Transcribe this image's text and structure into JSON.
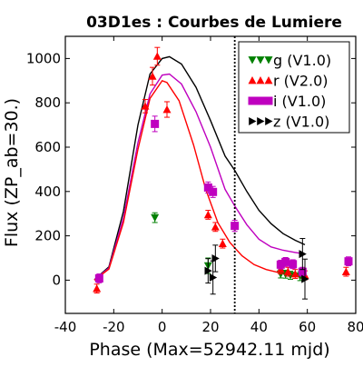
{
  "chart_data": {
    "type": "scatter",
    "title": "03D1es : Courbes de Lumiere",
    "xlabel": "Phase (Max=52942.11 mjd)",
    "ylabel": "Flux (ZP_ab=30.)",
    "xlim": [
      -40,
      80
    ],
    "ylim": [
      -150,
      1100
    ],
    "x_ticks": [
      -40,
      -20,
      0,
      20,
      40,
      60,
      80
    ],
    "x_tick_labels": [
      "-40",
      "-20",
      "0",
      "20",
      "40",
      "60",
      "80"
    ],
    "y_ticks": [
      0,
      200,
      400,
      600,
      800,
      1000
    ],
    "y_tick_labels": [
      "0",
      "200",
      "400",
      "600",
      "800",
      "1000"
    ],
    "grid": false,
    "legend_position": "top-right",
    "vline_x": 30,
    "series": [
      {
        "name": "g (V1.0)",
        "color": "#008000",
        "marker": "triangle-down",
        "points": [
          {
            "x": -3,
            "y": 282,
            "err": 22
          },
          {
            "x": 19,
            "y": 65,
            "err": 35
          },
          {
            "x": 49,
            "y": 28,
            "err": 18
          },
          {
            "x": 51,
            "y": 27,
            "err": 18
          },
          {
            "x": 53,
            "y": 22,
            "err": 18
          },
          {
            "x": 57,
            "y": 18,
            "err": 20
          }
        ]
      },
      {
        "name": "r (V2.0)",
        "color": "#ff0000",
        "marker": "triangle-up",
        "points": [
          {
            "x": -27,
            "y": -38,
            "err": 20
          },
          {
            "x": -7,
            "y": 785,
            "err": 30
          },
          {
            "x": -4,
            "y": 920,
            "err": 40
          },
          {
            "x": -2,
            "y": 1010,
            "err": 40
          },
          {
            "x": 2,
            "y": 770,
            "err": 35
          },
          {
            "x": 19,
            "y": 295,
            "err": 20
          },
          {
            "x": 22,
            "y": 240,
            "err": 20
          },
          {
            "x": 25,
            "y": 165,
            "err": 20
          },
          {
            "x": 49,
            "y": 48,
            "err": 20
          },
          {
            "x": 52,
            "y": 38,
            "err": 20
          },
          {
            "x": 55,
            "y": 28,
            "err": 20
          },
          {
            "x": 59,
            "y": 22,
            "err": 20
          },
          {
            "x": 76,
            "y": 38,
            "err": 20
          }
        ]
      },
      {
        "name": "i (V1.0)",
        "color": "#bf00bf",
        "marker": "square",
        "points": [
          {
            "x": -26,
            "y": 8,
            "err": 20
          },
          {
            "x": -3,
            "y": 705,
            "err": 35
          },
          {
            "x": 19,
            "y": 418,
            "err": 25
          },
          {
            "x": 21,
            "y": 398,
            "err": 25
          },
          {
            "x": 30,
            "y": 245,
            "err": 25
          },
          {
            "x": 49,
            "y": 70,
            "err": 20
          },
          {
            "x": 51,
            "y": 82,
            "err": 20
          },
          {
            "x": 54,
            "y": 72,
            "err": 20
          },
          {
            "x": 58,
            "y": 38,
            "err": 20
          },
          {
            "x": 77,
            "y": 85,
            "err": 20
          }
        ]
      },
      {
        "name": "z (V1.0)",
        "color": "#000000",
        "marker": "triangle-right",
        "points": [
          {
            "x": 19,
            "y": 42,
            "err": 55
          },
          {
            "x": 21,
            "y": 12,
            "err": 75
          },
          {
            "x": 22,
            "y": 98,
            "err": 60
          },
          {
            "x": 58,
            "y": 118,
            "err": 70
          },
          {
            "x": 59,
            "y": 5,
            "err": 90
          }
        ]
      }
    ],
    "model_curves": [
      {
        "color": "#000000",
        "points": [
          [
            -28,
            2
          ],
          [
            -22,
            60
          ],
          [
            -16,
            310
          ],
          [
            -10,
            700
          ],
          [
            -5,
            930
          ],
          [
            0,
            1000
          ],
          [
            3,
            1008
          ],
          [
            8,
            975
          ],
          [
            14,
            870
          ],
          [
            20,
            720
          ],
          [
            26,
            560
          ],
          [
            30,
            495
          ],
          [
            35,
            400
          ],
          [
            40,
            315
          ],
          [
            45,
            255
          ],
          [
            50,
            210
          ],
          [
            55,
            180
          ],
          [
            59,
            160
          ]
        ]
      },
      {
        "color": "#bf00bf",
        "points": [
          [
            -28,
            2
          ],
          [
            -22,
            55
          ],
          [
            -16,
            280
          ],
          [
            -10,
            620
          ],
          [
            -5,
            840
          ],
          [
            0,
            925
          ],
          [
            3,
            930
          ],
          [
            8,
            885
          ],
          [
            14,
            760
          ],
          [
            20,
            600
          ],
          [
            26,
            410
          ],
          [
            30,
            335
          ],
          [
            35,
            250
          ],
          [
            40,
            185
          ],
          [
            45,
            150
          ],
          [
            50,
            135
          ],
          [
            55,
            125
          ],
          [
            59,
            118
          ]
        ]
      },
      {
        "color": "#ff0000",
        "points": [
          [
            -28,
            0
          ],
          [
            -22,
            50
          ],
          [
            -16,
            260
          ],
          [
            -10,
            590
          ],
          [
            -5,
            820
          ],
          [
            0,
            900
          ],
          [
            2,
            892
          ],
          [
            7,
            810
          ],
          [
            13,
            610
          ],
          [
            18,
            410
          ],
          [
            23,
            260
          ],
          [
            28,
            170
          ],
          [
            33,
            110
          ],
          [
            38,
            70
          ],
          [
            43,
            48
          ],
          [
            48,
            35
          ],
          [
            53,
            28
          ],
          [
            59,
            24
          ]
        ]
      }
    ]
  }
}
